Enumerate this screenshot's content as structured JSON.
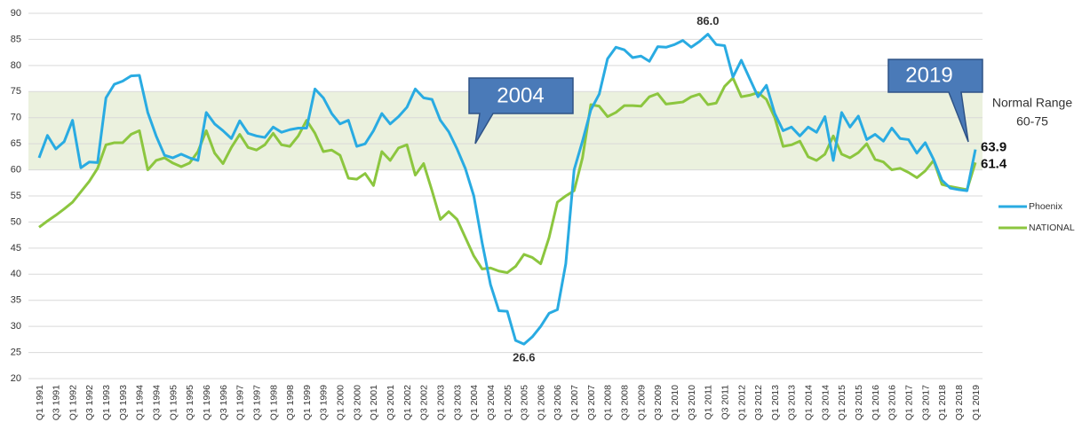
{
  "chart_data": {
    "type": "line",
    "categories": [
      "Q1 1991",
      null,
      "Q3 1991",
      null,
      "Q1 1992",
      null,
      "Q3 1992",
      null,
      "Q1 1993",
      null,
      "Q3 1993",
      null,
      "Q1 1994",
      null,
      "Q3 1994",
      null,
      "Q1 1995",
      null,
      "Q3 1995",
      null,
      "Q1 1996",
      null,
      "Q3 1996",
      null,
      "Q1 1997",
      null,
      "Q3 1997",
      null,
      "Q1 1998",
      null,
      "Q3 1998",
      null,
      "Q1 1999",
      null,
      "Q3 1999",
      null,
      "Q1 2000",
      null,
      "Q3 2000",
      null,
      "Q1 2001",
      null,
      "Q3 2001",
      null,
      "Q1 2002",
      null,
      "Q3 2002",
      null,
      "Q1 2003",
      null,
      "Q3 2003",
      null,
      "Q1 2004",
      null,
      "Q3 2004",
      null,
      "Q1 2005",
      null,
      "Q3 2005",
      null,
      "Q1 2006",
      null,
      "Q3 2006",
      null,
      "Q1 2007",
      null,
      "Q3 2007",
      null,
      "Q1 2008",
      null,
      "Q3 2008",
      null,
      "Q1 2009",
      null,
      "Q3 2009",
      null,
      "Q1 2010",
      null,
      "Q3 2010",
      null,
      "Q1 2011",
      null,
      "Q3 2011",
      null,
      "Q1 2012",
      null,
      "Q3 2012",
      null,
      "Q1 2013",
      null,
      "Q3 2013",
      null,
      "Q1 2014",
      null,
      "Q3 2014",
      null,
      "Q1 2015",
      null,
      "Q3 2015",
      null,
      "Q1 2016",
      null,
      "Q3 2016",
      null,
      "Q1 2017",
      null,
      "Q3 2017",
      null,
      "Q1 2018",
      null,
      "Q3 2018",
      null,
      "Q1 2019"
    ],
    "series": [
      {
        "name": "Phoenix",
        "color": "#29abe2",
        "values": [
          62.3,
          66.6,
          64.0,
          65.4,
          69.5,
          60.4,
          61.5,
          61.4,
          73.8,
          76.4,
          77.0,
          78.0,
          78.1,
          71.0,
          66.5,
          62.8,
          62.3,
          63.0,
          62.3,
          61.8,
          71.0,
          68.8,
          67.5,
          66.0,
          69.4,
          67.0,
          66.5,
          66.2,
          68.2,
          67.2,
          67.7,
          68.0,
          68.0,
          75.5,
          73.8,
          70.8,
          68.8,
          69.5,
          64.5,
          65.0,
          67.5,
          70.8,
          68.8,
          70.2,
          72.0,
          75.5,
          73.8,
          73.5,
          69.5,
          67.3,
          64.0,
          60.2,
          55.0,
          46.0,
          38.0,
          33.0,
          32.9,
          27.3,
          26.6,
          28.0,
          30.0,
          32.5,
          33.2,
          42.0,
          60.0,
          65.5,
          71.5,
          74.5,
          81.3,
          83.5,
          83.0,
          81.5,
          81.8,
          80.8,
          83.6,
          83.5,
          84.0,
          84.8,
          83.5,
          84.6,
          86.0,
          84.0,
          83.8,
          77.8,
          81.0,
          77.5,
          74.0,
          76.2,
          70.8,
          67.5,
          68.2,
          66.5,
          68.2,
          67.2,
          70.2,
          61.8,
          71.0,
          68.2,
          70.3,
          65.8,
          66.8,
          65.5,
          68.0,
          66.0,
          65.8,
          63.2,
          65.2,
          62.0,
          58.0,
          56.5,
          56.2,
          56.0,
          63.9
        ]
      },
      {
        "name": "NATIONAL",
        "color": "#8cc63f",
        "values": [
          49.0,
          50.2,
          51.3,
          52.5,
          53.8,
          55.8,
          57.8,
          60.3,
          64.8,
          65.2,
          65.2,
          66.8,
          67.5,
          60.0,
          61.8,
          62.3,
          61.3,
          60.6,
          61.3,
          63.5,
          67.5,
          63.2,
          61.2,
          64.3,
          66.8,
          64.3,
          63.8,
          64.8,
          67.0,
          64.8,
          64.5,
          66.5,
          69.5,
          67.0,
          63.5,
          63.8,
          62.8,
          58.4,
          58.2,
          59.3,
          57.0,
          63.5,
          61.8,
          64.2,
          64.8,
          59.0,
          61.2,
          56.0,
          50.5,
          52.0,
          50.5,
          47.0,
          43.5,
          41.0,
          41.2,
          40.6,
          40.3,
          41.5,
          43.8,
          43.2,
          42.0,
          47.0,
          53.8,
          55.0,
          56.0,
          62.3,
          72.5,
          72.2,
          70.2,
          71.0,
          72.3,
          72.3,
          72.2,
          74.0,
          74.6,
          72.6,
          72.8,
          73.0,
          74.0,
          74.5,
          72.5,
          72.8,
          76.0,
          77.6,
          74.0,
          74.3,
          74.8,
          73.5,
          70.0,
          64.5,
          64.8,
          65.5,
          62.5,
          61.8,
          63.0,
          66.5,
          63.0,
          62.3,
          63.3,
          65.0,
          62.0,
          61.5,
          60.0,
          60.3,
          59.5,
          58.5,
          59.8,
          61.8,
          57.2,
          56.8,
          56.5,
          56.2,
          61.4
        ]
      }
    ],
    "ylim": [
      20,
      90
    ],
    "yticks": [
      20,
      25,
      30,
      35,
      40,
      45,
      50,
      55,
      60,
      65,
      70,
      75,
      80,
      85,
      90
    ],
    "grid": true,
    "normal_range": [
      60,
      75
    ],
    "normal_range_color": "#ebf1de",
    "normal_range_title": "Normal Range",
    "normal_range_label": "60-75",
    "peak_label": "86.0",
    "trough_label": "26.6",
    "end_labels": [
      "63.9",
      "61.4"
    ],
    "callouts": [
      "2004",
      "2019"
    ],
    "legend": "right"
  }
}
